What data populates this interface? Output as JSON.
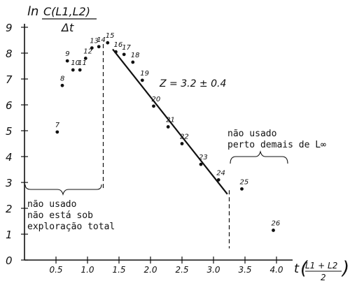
{
  "chart_data": {
    "type": "scatter",
    "xlim": [
      0,
      4.3
    ],
    "ylim": [
      0,
      9
    ],
    "x_ticks": [
      "0.5",
      "1.0",
      "1.5",
      "2.0",
      "2.5",
      "3.0",
      "3.5",
      "4.0"
    ],
    "x_tick_values": [
      0.5,
      1.0,
      1.5,
      2.0,
      2.5,
      3.0,
      3.5,
      4.0
    ],
    "y_ticks": [
      "0",
      "1",
      "2",
      "3",
      "4",
      "5",
      "6",
      "7",
      "8",
      "9"
    ],
    "y_tick_values": [
      0,
      1,
      2,
      3,
      4,
      5,
      6,
      7,
      8,
      9
    ],
    "ylabel": {
      "main": "ln",
      "numerator": "C(L1,L2)",
      "denominator": "Δt"
    },
    "xlabel": {
      "main": "t",
      "numerator": "L1 + L2",
      "denominator": "2"
    },
    "points": [
      {
        "label": "7",
        "x": 0.52,
        "y": 4.95
      },
      {
        "label": "8",
        "x": 0.6,
        "y": 6.75
      },
      {
        "label": "9",
        "x": 0.68,
        "y": 7.7
      },
      {
        "label": "10",
        "x": 0.77,
        "y": 7.35
      },
      {
        "label": "11",
        "x": 0.88,
        "y": 7.35
      },
      {
        "label": "12",
        "x": 0.97,
        "y": 7.8
      },
      {
        "label": "13",
        "x": 1.07,
        "y": 8.2
      },
      {
        "label": "14",
        "x": 1.18,
        "y": 8.25
      },
      {
        "label": "15",
        "x": 1.32,
        "y": 8.4
      },
      {
        "label": "16",
        "x": 1.45,
        "y": 8.05
      },
      {
        "label": "17",
        "x": 1.58,
        "y": 7.95
      },
      {
        "label": "18",
        "x": 1.72,
        "y": 7.65
      },
      {
        "label": "19",
        "x": 1.87,
        "y": 6.95
      },
      {
        "label": "20",
        "x": 2.05,
        "y": 5.95
      },
      {
        "label": "21",
        "x": 2.28,
        "y": 5.15
      },
      {
        "label": "22",
        "x": 2.5,
        "y": 4.5
      },
      {
        "label": "23",
        "x": 2.8,
        "y": 3.7
      },
      {
        "label": "24",
        "x": 3.08,
        "y": 3.1
      },
      {
        "label": "25",
        "x": 3.45,
        "y": 2.75
      },
      {
        "label": "26",
        "x": 3.95,
        "y": 1.15
      }
    ],
    "fit_line": {
      "x": [
        1.4,
        3.22
      ],
      "y": [
        8.15,
        2.55
      ]
    },
    "fit_label": "Z = 3.2 ± 0.4",
    "cutoffs": [
      1.25,
      3.25
    ],
    "annotations": {
      "left": [
        "não usado",
        "não está sob",
        "exploração total"
      ],
      "right": [
        "não usado",
        "perto demais de L∞"
      ]
    }
  }
}
